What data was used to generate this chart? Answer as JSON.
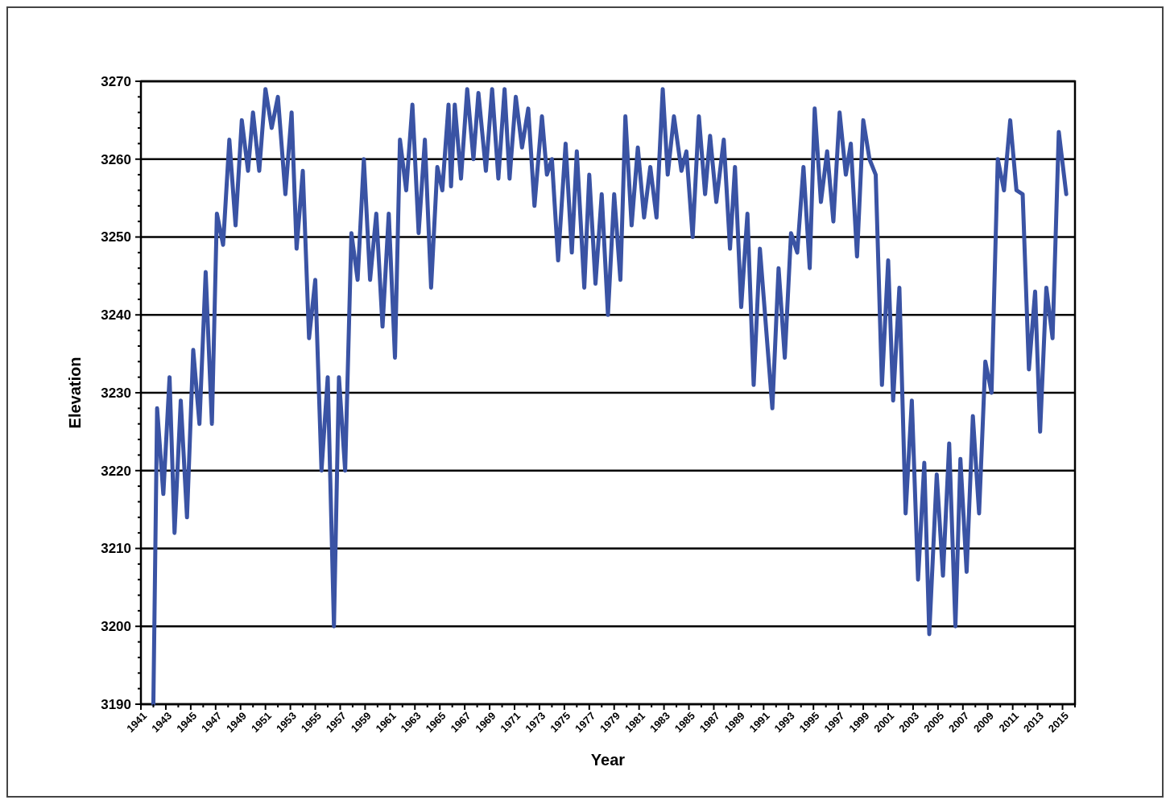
{
  "chart_data": {
    "type": "line",
    "xlabel": "Year",
    "ylabel": "Elevation",
    "x": [
      1942.0,
      1942.3,
      1942.8,
      1943.3,
      1943.7,
      1944.2,
      1944.7,
      1945.2,
      1945.7,
      1946.2,
      1946.7,
      1947.1,
      1947.6,
      1948.1,
      1948.6,
      1949.1,
      1949.6,
      1950.0,
      1950.5,
      1951.0,
      1951.5,
      1952.0,
      1952.6,
      1953.1,
      1953.5,
      1954.0,
      1954.5,
      1955.0,
      1955.5,
      1956.0,
      1956.5,
      1956.9,
      1957.4,
      1957.9,
      1958.4,
      1958.9,
      1959.4,
      1959.9,
      1960.4,
      1960.9,
      1961.4,
      1961.8,
      1962.3,
      1962.8,
      1963.3,
      1963.8,
      1964.3,
      1964.8,
      1965.2,
      1965.7,
      1965.9,
      1966.2,
      1966.7,
      1967.2,
      1967.7,
      1968.1,
      1968.7,
      1969.2,
      1969.7,
      1970.2,
      1970.6,
      1971.1,
      1971.6,
      1972.1,
      1972.6,
      1973.2,
      1973.6,
      1974.0,
      1974.5,
      1975.1,
      1975.6,
      1976.0,
      1976.6,
      1977.0,
      1977.5,
      1978.0,
      1978.5,
      1979.0,
      1979.5,
      1979.9,
      1980.4,
      1980.9,
      1981.4,
      1981.9,
      1982.4,
      1982.9,
      1983.3,
      1983.8,
      1984.4,
      1984.8,
      1985.3,
      1985.8,
      1986.3,
      1986.7,
      1987.2,
      1987.8,
      1988.3,
      1988.7,
      1989.2,
      1989.7,
      1990.2,
      1990.7,
      1991.7,
      1992.2,
      1992.7,
      1993.2,
      1993.7,
      1994.2,
      1994.7,
      1995.1,
      1995.6,
      1996.1,
      1996.6,
      1997.1,
      1997.6,
      1998.0,
      1998.5,
      1999.0,
      1999.5,
      2000.0,
      2000.5,
      2001.0,
      2001.4,
      2001.9,
      2002.4,
      2002.9,
      2003.4,
      2003.9,
      2004.3,
      2004.9,
      2005.4,
      2005.9,
      2006.4,
      2006.8,
      2007.3,
      2007.8,
      2008.3,
      2008.8,
      2009.3,
      2009.8,
      2010.3,
      2010.8,
      2011.3,
      2011.8,
      2012.3,
      2012.8,
      2013.2,
      2013.7,
      2014.2,
      2014.7,
      2015.3
    ],
    "series": [
      {
        "color": "#3a53a4",
        "values": [
          3190,
          3228,
          3217,
          3232,
          3212,
          3229,
          3214,
          3235.5,
          3226,
          3245.5,
          3226,
          3253,
          3249,
          3262.5,
          3251.5,
          3265,
          3258.5,
          3266,
          3258.5,
          3269,
          3264,
          3268,
          3255.5,
          3266,
          3248.5,
          3258.5,
          3237,
          3244.5,
          3220,
          3232,
          3200,
          3232,
          3220,
          3250.5,
          3244.5,
          3260,
          3244.5,
          3253,
          3238.5,
          3253,
          3234.5,
          3262.5,
          3256,
          3267,
          3250.5,
          3262.5,
          3243.5,
          3259,
          3256,
          3267,
          3256.5,
          3267,
          3257.5,
          3269,
          3260,
          3268.5,
          3258.5,
          3269,
          3257.5,
          3269,
          3257.5,
          3268,
          3261.5,
          3266.5,
          3254,
          3265.5,
          3258,
          3260,
          3247,
          3262,
          3248,
          3261,
          3243.5,
          3258,
          3244,
          3255.5,
          3240,
          3255.5,
          3244.5,
          3265.5,
          3251.5,
          3261.5,
          3252.5,
          3259,
          3252.5,
          3269,
          3258,
          3265.5,
          3258.5,
          3261,
          3250,
          3265.5,
          3255.5,
          3263,
          3254.5,
          3262.5,
          3248.5,
          3259,
          3241,
          3253,
          3231,
          3248.5,
          3228,
          3246,
          3234.5,
          3250.5,
          3248,
          3259,
          3246,
          3266.5,
          3254.5,
          3261,
          3252,
          3266,
          3258,
          3262,
          3247.5,
          3265,
          3260,
          3258,
          3231,
          3247,
          3229,
          3243.5,
          3214.5,
          3229,
          3206,
          3221,
          3199,
          3219.5,
          3206.5,
          3223.5,
          3200,
          3221.5,
          3207,
          3227,
          3214.5,
          3234,
          3230,
          3260,
          3256,
          3265,
          3256,
          3255.5,
          3233,
          3243,
          3225,
          3243.5,
          3237,
          3263.5,
          3255.5
        ]
      }
    ],
    "xlim": [
      1941,
      2016
    ],
    "xticks": [
      1941,
      {
        "value": 1942,
        "label": null
      },
      1943,
      {
        "value": 1944,
        "label": null
      },
      1945,
      {
        "value": 1946,
        "label": null
      },
      1947,
      {
        "value": 1948,
        "label": null
      },
      1949,
      {
        "value": 1950,
        "label": null
      },
      1951,
      {
        "value": 1952,
        "label": null
      },
      1953,
      {
        "value": 1954,
        "label": null
      },
      1955,
      {
        "value": 1956,
        "label": null
      },
      1957,
      {
        "value": 1958,
        "label": null
      },
      1959,
      {
        "value": 1960,
        "label": null
      },
      1961,
      {
        "value": 1962,
        "label": null
      },
      1963,
      {
        "value": 1964,
        "label": null
      },
      1965,
      {
        "value": 1966,
        "label": null
      },
      1967,
      {
        "value": 1968,
        "label": null
      },
      1969,
      {
        "value": 1970,
        "label": null
      },
      1971,
      {
        "value": 1972,
        "label": null
      },
      1973,
      {
        "value": 1974,
        "label": null
      },
      1975,
      {
        "value": 1976,
        "label": null
      },
      1977,
      {
        "value": 1978,
        "label": null
      },
      1979,
      {
        "value": 1980,
        "label": null
      },
      1981,
      {
        "value": 1982,
        "label": null
      },
      1983,
      {
        "value": 1984,
        "label": null
      },
      1985,
      {
        "value": 1986,
        "label": null
      },
      1987,
      {
        "value": 1988,
        "label": null
      },
      1989,
      {
        "value": 1990,
        "label": null
      },
      1991,
      {
        "value": 1992,
        "label": null
      },
      1993,
      {
        "value": 1994,
        "label": null
      },
      1995,
      {
        "value": 1996,
        "label": null
      },
      1997,
      {
        "value": 1998,
        "label": null
      },
      1999,
      {
        "value": 2000,
        "label": null
      },
      2001,
      {
        "value": 2002,
        "label": null
      },
      2003,
      {
        "value": 2004,
        "label": null
      },
      2005,
      {
        "value": 2006,
        "label": null
      },
      2007,
      {
        "value": 2008,
        "label": null
      },
      2009,
      {
        "value": 2010,
        "label": null
      },
      2011,
      {
        "value": 2012,
        "label": null
      },
      2013,
      {
        "value": 2014,
        "label": null
      },
      2015,
      {
        "value": 2016,
        "label": null
      }
    ],
    "ylim": [
      3190,
      3270
    ],
    "yticks": [
      3190,
      {
        "value": 3192,
        "label": null
      },
      {
        "value": 3194,
        "label": null
      },
      {
        "value": 3196,
        "label": null
      },
      {
        "value": 3198,
        "label": null
      },
      3200,
      {
        "value": 3202,
        "label": null
      },
      {
        "value": 3204,
        "label": null
      },
      {
        "value": 3206,
        "label": null
      },
      {
        "value": 3208,
        "label": null
      },
      3210,
      {
        "value": 3212,
        "label": null
      },
      {
        "value": 3214,
        "label": null
      },
      {
        "value": 3216,
        "label": null
      },
      {
        "value": 3218,
        "label": null
      },
      3220,
      {
        "value": 3222,
        "label": null
      },
      {
        "value": 3224,
        "label": null
      },
      {
        "value": 3226,
        "label": null
      },
      {
        "value": 3228,
        "label": null
      },
      3230,
      {
        "value": 3232,
        "label": null
      },
      {
        "value": 3234,
        "label": null
      },
      {
        "value": 3236,
        "label": null
      },
      {
        "value": 3238,
        "label": null
      },
      3240,
      {
        "value": 3242,
        "label": null
      },
      {
        "value": 3244,
        "label": null
      },
      {
        "value": 3246,
        "label": null
      },
      {
        "value": 3248,
        "label": null
      },
      3250,
      {
        "value": 3252,
        "label": null
      },
      {
        "value": 3254,
        "label": null
      },
      {
        "value": 3256,
        "label": null
      },
      {
        "value": 3258,
        "label": null
      },
      3260,
      {
        "value": 3262,
        "label": null
      },
      {
        "value": 3264,
        "label": null
      },
      {
        "value": 3266,
        "label": null
      },
      {
        "value": 3268,
        "label": null
      },
      3270
    ],
    "grid": "y",
    "marker": "none",
    "line_style": "solid"
  }
}
